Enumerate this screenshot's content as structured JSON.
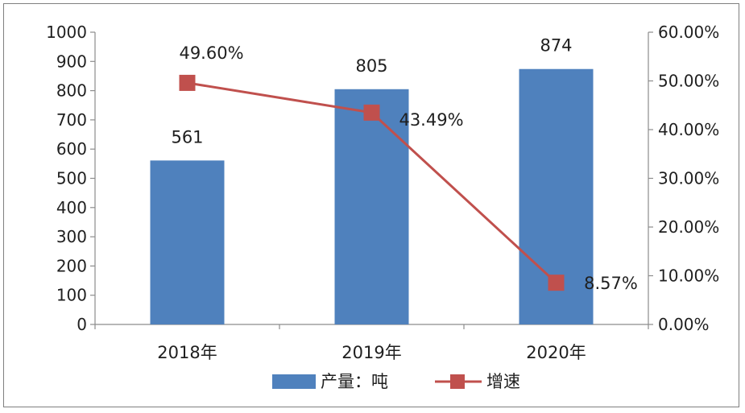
{
  "chart_data": {
    "type": "bar+line",
    "categories": [
      "2018年",
      "2019年",
      "2020年"
    ],
    "series": [
      {
        "name": "产量：吨",
        "kind": "bar",
        "axis": "left",
        "values": [
          561,
          805,
          874
        ],
        "labels": [
          "561",
          "805",
          "874"
        ],
        "color": "#4f81bd"
      },
      {
        "name": "增速",
        "kind": "line",
        "axis": "right",
        "values": [
          49.6,
          43.49,
          8.57
        ],
        "labels": [
          "49.60%",
          "43.49%",
          "8.57%"
        ],
        "color": "#c0504d",
        "marker": "square"
      }
    ],
    "y_left": {
      "min": 0,
      "max": 1000,
      "step": 100,
      "tick_labels": [
        "0",
        "100",
        "200",
        "300",
        "400",
        "500",
        "600",
        "700",
        "800",
        "900",
        "1000"
      ]
    },
    "y_right": {
      "min": 0,
      "max": 60,
      "step": 10,
      "tick_labels": [
        "0.00%",
        "10.00%",
        "20.00%",
        "30.00%",
        "40.00%",
        "50.00%",
        "60.00%"
      ]
    },
    "grid": false,
    "legend": "bottom-center"
  }
}
